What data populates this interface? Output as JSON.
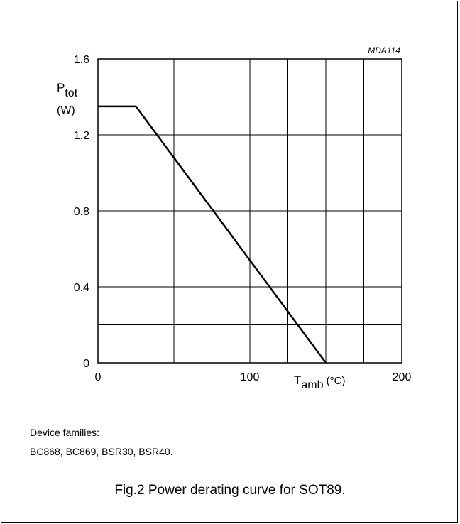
{
  "chart_data": {
    "type": "line",
    "title": "",
    "code": "MDA114",
    "xlabel": {
      "main": "T",
      "sub": "amb",
      "unit": " (°C)"
    },
    "ylabel": {
      "main": "P",
      "sub": "tot",
      "unit": "(W)"
    },
    "xlim": [
      0,
      200
    ],
    "ylim": [
      0,
      1.6
    ],
    "x_ticks": [
      {
        "value": 0,
        "label": "0"
      },
      {
        "value": 100,
        "label": "100"
      },
      {
        "value": 200,
        "label": "200"
      }
    ],
    "y_ticks": [
      {
        "value": 0,
        "label": "0"
      },
      {
        "value": 0.4,
        "label": "0.4"
      },
      {
        "value": 0.8,
        "label": "0.8"
      },
      {
        "value": 1.2,
        "label": "1.2"
      },
      {
        "value": 1.6,
        "label": "1.6"
      }
    ],
    "grid": true,
    "grid_step_x": 25,
    "grid_step_y": 0.2,
    "series": [
      {
        "x": [
          0,
          25,
          150
        ],
        "y": [
          1.35,
          1.35,
          0
        ]
      }
    ]
  },
  "notes": {
    "line1": "Device families:",
    "line2": "BC868, BC869, BSR30, BSR40."
  },
  "caption": "Fig.2  Power derating curve for SOT89."
}
